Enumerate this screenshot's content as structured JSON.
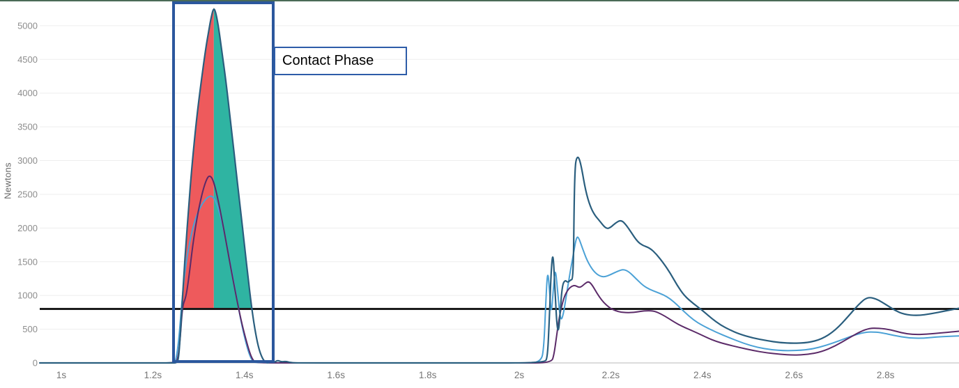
{
  "page": {
    "top_strip_color": "#4a6b57"
  },
  "y_axis": {
    "title": "Newtons",
    "tick_values": [
      0,
      500,
      1000,
      1500,
      2000,
      2500,
      3000,
      3500,
      4000,
      4500,
      5000
    ],
    "label_color": "#8d8d8d"
  },
  "x_axis": {
    "ticks": [
      {
        "t": 1.0,
        "label": "1s"
      },
      {
        "t": 1.2,
        "label": "1.2s"
      },
      {
        "t": 1.4,
        "label": "1.4s"
      },
      {
        "t": 1.6,
        "label": "1.6s"
      },
      {
        "t": 1.8,
        "label": "1.8s"
      },
      {
        "t": 2.0,
        "label": "2s"
      },
      {
        "t": 2.2,
        "label": "2.2s"
      },
      {
        "t": 2.4,
        "label": "2.4s"
      },
      {
        "t": 2.6,
        "label": "2.6s"
      },
      {
        "t": 2.8,
        "label": "2.8s"
      }
    ],
    "label_color": "#757575"
  },
  "annotation": {
    "label": "Contact Phase",
    "box_color": "#2b579d",
    "region": {
      "t_start": 1.242,
      "t_end": 1.467
    }
  },
  "threshold": {
    "value": 800,
    "color": "#1b1b1b"
  },
  "chart_data": {
    "type": "line",
    "title": "",
    "xlabel": "",
    "ylabel": "Newtons",
    "x_unit": "seconds",
    "xlim": [
      0.953,
      2.96
    ],
    "ylim": [
      0,
      5380
    ],
    "grid": true,
    "legend": "none",
    "threshold_line": 800,
    "contact_fill": {
      "red_color": "#ee5a5c",
      "teal_color": "#2fb4a2",
      "t_rise_cross": 1.2635,
      "apex_t": 1.333,
      "t_fall_cross": 1.4165,
      "base_value": 800
    },
    "series": [
      {
        "name": "force-light-blue",
        "color": "#4ba1d6",
        "width": 2,
        "points": [
          [
            0.953,
            0
          ],
          [
            1.2,
            0
          ],
          [
            1.245,
            0
          ],
          [
            1.25,
            30
          ],
          [
            1.256,
            300
          ],
          [
            1.262,
            800
          ],
          [
            1.268,
            1250
          ],
          [
            1.275,
            1600
          ],
          [
            1.285,
            1950
          ],
          [
            1.295,
            2180
          ],
          [
            1.305,
            2330
          ],
          [
            1.315,
            2430
          ],
          [
            1.325,
            2480
          ],
          [
            1.332,
            2460
          ],
          [
            1.34,
            2350
          ],
          [
            1.35,
            2120
          ],
          [
            1.36,
            1800
          ],
          [
            1.37,
            1440
          ],
          [
            1.38,
            1080
          ],
          [
            1.39,
            700
          ],
          [
            1.4,
            380
          ],
          [
            1.41,
            130
          ],
          [
            1.418,
            20
          ],
          [
            1.425,
            0
          ],
          [
            1.6,
            0
          ],
          [
            1.8,
            0
          ],
          [
            2.0,
            0
          ],
          [
            2.048,
            0
          ],
          [
            2.054,
            250
          ],
          [
            2.058,
            900
          ],
          [
            2.062,
            1390
          ],
          [
            2.066,
            1100
          ],
          [
            2.07,
            680
          ],
          [
            2.075,
            1150
          ],
          [
            2.079,
            1420
          ],
          [
            2.084,
            1050
          ],
          [
            2.09,
            620
          ],
          [
            2.096,
            700
          ],
          [
            2.104,
            1050
          ],
          [
            2.112,
            1380
          ],
          [
            2.118,
            1600
          ],
          [
            2.125,
            1870
          ],
          [
            2.13,
            1860
          ],
          [
            2.138,
            1700
          ],
          [
            2.148,
            1520
          ],
          [
            2.16,
            1380
          ],
          [
            2.172,
            1300
          ],
          [
            2.185,
            1270
          ],
          [
            2.2,
            1310
          ],
          [
            2.215,
            1360
          ],
          [
            2.228,
            1390
          ],
          [
            2.24,
            1350
          ],
          [
            2.255,
            1250
          ],
          [
            2.27,
            1150
          ],
          [
            2.285,
            1090
          ],
          [
            2.3,
            1050
          ],
          [
            2.315,
            1010
          ],
          [
            2.33,
            950
          ],
          [
            2.345,
            860
          ],
          [
            2.36,
            760
          ],
          [
            2.38,
            640
          ],
          [
            2.4,
            555
          ],
          [
            2.43,
            455
          ],
          [
            2.46,
            370
          ],
          [
            2.49,
            290
          ],
          [
            2.52,
            230
          ],
          [
            2.55,
            195
          ],
          [
            2.58,
            180
          ],
          [
            2.61,
            185
          ],
          [
            2.64,
            205
          ],
          [
            2.67,
            260
          ],
          [
            2.7,
            330
          ],
          [
            2.73,
            410
          ],
          [
            2.755,
            455
          ],
          [
            2.77,
            460
          ],
          [
            2.79,
            450
          ],
          [
            2.82,
            405
          ],
          [
            2.85,
            370
          ],
          [
            2.88,
            365
          ],
          [
            2.91,
            385
          ],
          [
            2.94,
            395
          ],
          [
            2.96,
            400
          ]
        ]
      },
      {
        "name": "force-purple",
        "color": "#5b2a68",
        "width": 2,
        "points": [
          [
            0.953,
            0
          ],
          [
            1.2,
            0
          ],
          [
            1.25,
            0
          ],
          [
            1.255,
            80
          ],
          [
            1.26,
            380
          ],
          [
            1.263,
            700
          ],
          [
            1.266,
            870
          ],
          [
            1.27,
            940
          ],
          [
            1.274,
            1050
          ],
          [
            1.28,
            1350
          ],
          [
            1.287,
            1750
          ],
          [
            1.295,
            2100
          ],
          [
            1.303,
            2380
          ],
          [
            1.31,
            2580
          ],
          [
            1.317,
            2720
          ],
          [
            1.323,
            2780
          ],
          [
            1.33,
            2740
          ],
          [
            1.337,
            2580
          ],
          [
            1.345,
            2330
          ],
          [
            1.355,
            1980
          ],
          [
            1.365,
            1600
          ],
          [
            1.375,
            1230
          ],
          [
            1.385,
            880
          ],
          [
            1.395,
            560
          ],
          [
            1.405,
            300
          ],
          [
            1.413,
            120
          ],
          [
            1.42,
            25
          ],
          [
            1.428,
            0
          ],
          [
            1.6,
            0
          ],
          [
            1.8,
            0
          ],
          [
            2.0,
            0
          ],
          [
            2.07,
            0
          ],
          [
            2.076,
            120
          ],
          [
            2.082,
            420
          ],
          [
            2.088,
            700
          ],
          [
            2.094,
            880
          ],
          [
            2.1,
            1010
          ],
          [
            2.108,
            1100
          ],
          [
            2.115,
            1140
          ],
          [
            2.122,
            1150
          ],
          [
            2.13,
            1120
          ],
          [
            2.136,
            1130
          ],
          [
            2.144,
            1180
          ],
          [
            2.152,
            1210
          ],
          [
            2.16,
            1150
          ],
          [
            2.17,
            1030
          ],
          [
            2.18,
            930
          ],
          [
            2.19,
            860
          ],
          [
            2.2,
            805
          ],
          [
            2.21,
            775
          ],
          [
            2.22,
            755
          ],
          [
            2.235,
            745
          ],
          [
            2.25,
            750
          ],
          [
            2.265,
            765
          ],
          [
            2.28,
            775
          ],
          [
            2.295,
            770
          ],
          [
            2.31,
            725
          ],
          [
            2.325,
            665
          ],
          [
            2.34,
            600
          ],
          [
            2.355,
            545
          ],
          [
            2.37,
            500
          ],
          [
            2.39,
            440
          ],
          [
            2.41,
            375
          ],
          [
            2.43,
            320
          ],
          [
            2.45,
            280
          ],
          [
            2.48,
            230
          ],
          [
            2.51,
            185
          ],
          [
            2.54,
            150
          ],
          [
            2.57,
            128
          ],
          [
            2.6,
            115
          ],
          [
            2.63,
            125
          ],
          [
            2.66,
            165
          ],
          [
            2.69,
            250
          ],
          [
            2.72,
            370
          ],
          [
            2.745,
            465
          ],
          [
            2.765,
            515
          ],
          [
            2.785,
            515
          ],
          [
            2.81,
            495
          ],
          [
            2.835,
            445
          ],
          [
            2.86,
            420
          ],
          [
            2.89,
            425
          ],
          [
            2.92,
            445
          ],
          [
            2.945,
            460
          ],
          [
            2.96,
            470
          ]
        ]
      },
      {
        "name": "total-force",
        "color": "#2a5e7e",
        "width": 2.2,
        "points": [
          [
            0.953,
            0
          ],
          [
            1.2,
            0
          ],
          [
            1.24,
            0
          ],
          [
            1.252,
            0
          ],
          [
            1.256,
            60
          ],
          [
            1.26,
            420
          ],
          [
            1.264,
            900
          ],
          [
            1.268,
            1350
          ],
          [
            1.272,
            1750
          ],
          [
            1.278,
            2300
          ],
          [
            1.285,
            2900
          ],
          [
            1.295,
            3600
          ],
          [
            1.305,
            4150
          ],
          [
            1.315,
            4650
          ],
          [
            1.322,
            4930
          ],
          [
            1.328,
            5150
          ],
          [
            1.333,
            5270
          ],
          [
            1.338,
            5180
          ],
          [
            1.344,
            4950
          ],
          [
            1.352,
            4550
          ],
          [
            1.36,
            4150
          ],
          [
            1.37,
            3550
          ],
          [
            1.38,
            2950
          ],
          [
            1.39,
            2350
          ],
          [
            1.4,
            1750
          ],
          [
            1.408,
            1250
          ],
          [
            1.415,
            850
          ],
          [
            1.422,
            520
          ],
          [
            1.43,
            240
          ],
          [
            1.438,
            80
          ],
          [
            1.445,
            10
          ],
          [
            1.452,
            0
          ],
          [
            1.458,
            35
          ],
          [
            1.465,
            5
          ],
          [
            1.472,
            40
          ],
          [
            1.48,
            15
          ],
          [
            1.49,
            25
          ],
          [
            1.5,
            5
          ],
          [
            1.52,
            0
          ],
          [
            1.7,
            0
          ],
          [
            1.9,
            0
          ],
          [
            2.055,
            0
          ],
          [
            2.062,
            80
          ],
          [
            2.066,
            700
          ],
          [
            2.07,
            1420
          ],
          [
            2.074,
            1650
          ],
          [
            2.078,
            1100
          ],
          [
            2.082,
            560
          ],
          [
            2.086,
            450
          ],
          [
            2.09,
            800
          ],
          [
            2.094,
            1150
          ],
          [
            2.1,
            1230
          ],
          [
            2.106,
            1190
          ],
          [
            2.112,
            1230
          ],
          [
            2.118,
            1245
          ],
          [
            2.12,
            2400
          ],
          [
            2.122,
            2900
          ],
          [
            2.125,
            3040
          ],
          [
            2.13,
            3055
          ],
          [
            2.136,
            2900
          ],
          [
            2.145,
            2550
          ],
          [
            2.155,
            2320
          ],
          [
            2.165,
            2190
          ],
          [
            2.175,
            2110
          ],
          [
            2.19,
            1985
          ],
          [
            2.2,
            2010
          ],
          [
            2.21,
            2075
          ],
          [
            2.222,
            2120
          ],
          [
            2.232,
            2060
          ],
          [
            2.245,
            1930
          ],
          [
            2.258,
            1800
          ],
          [
            2.27,
            1740
          ],
          [
            2.285,
            1705
          ],
          [
            2.3,
            1610
          ],
          [
            2.315,
            1480
          ],
          [
            2.33,
            1330
          ],
          [
            2.345,
            1150
          ],
          [
            2.36,
            1000
          ],
          [
            2.38,
            880
          ],
          [
            2.4,
            780
          ],
          [
            2.42,
            660
          ],
          [
            2.44,
            560
          ],
          [
            2.46,
            490
          ],
          [
            2.48,
            430
          ],
          [
            2.51,
            370
          ],
          [
            2.54,
            330
          ],
          [
            2.57,
            300
          ],
          [
            2.6,
            290
          ],
          [
            2.63,
            300
          ],
          [
            2.66,
            350
          ],
          [
            2.69,
            480
          ],
          [
            2.72,
            700
          ],
          [
            2.74,
            860
          ],
          [
            2.76,
            980
          ],
          [
            2.78,
            950
          ],
          [
            2.8,
            870
          ],
          [
            2.82,
            780
          ],
          [
            2.84,
            720
          ],
          [
            2.87,
            700
          ],
          [
            2.9,
            730
          ],
          [
            2.93,
            770
          ],
          [
            2.96,
            810
          ]
        ]
      }
    ]
  }
}
